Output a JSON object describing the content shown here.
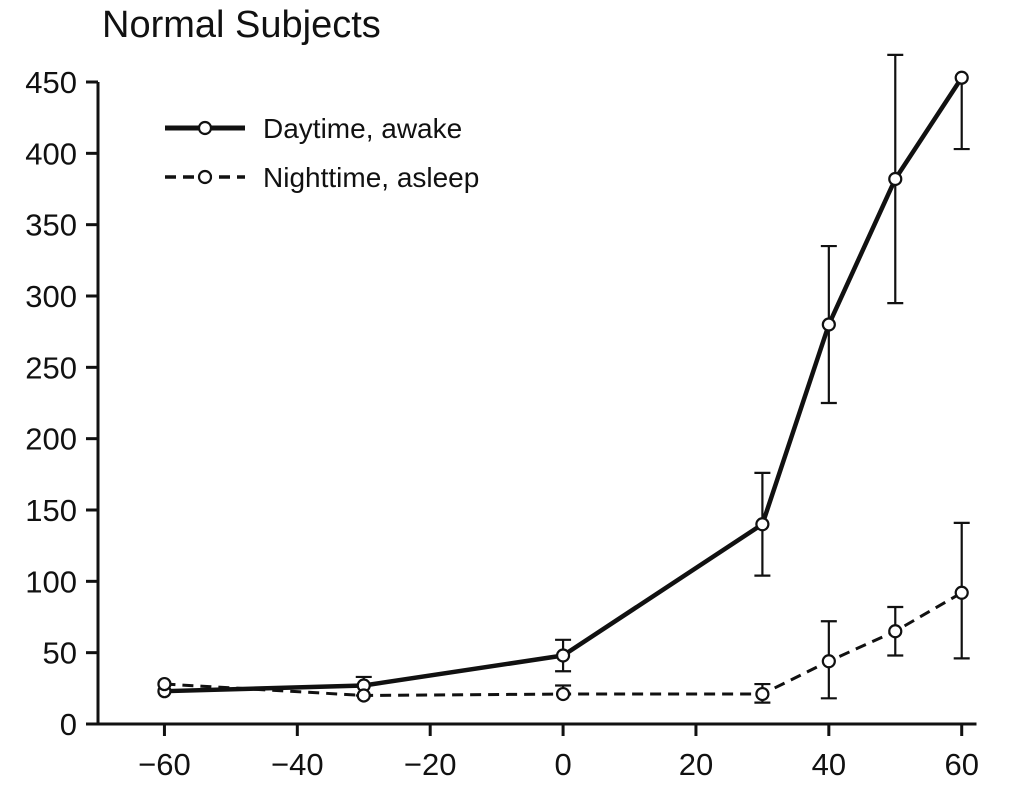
{
  "chart_data": {
    "type": "line",
    "title": "Normal Subjects",
    "xlabel": "",
    "ylabel": "",
    "xlim": [
      -70,
      62
    ],
    "ylim": [
      0,
      450
    ],
    "x_ticks": [
      -60,
      -40,
      -20,
      0,
      20,
      40,
      60
    ],
    "x_tick_labels": [
      "−60",
      "−40",
      "−20",
      "0",
      "20",
      "40",
      "60"
    ],
    "y_ticks": [
      0,
      50,
      100,
      150,
      200,
      250,
      300,
      350,
      400,
      450
    ],
    "y_tick_labels": [
      "0",
      "50",
      "100",
      "150",
      "200",
      "250",
      "300",
      "350",
      "400",
      "450"
    ],
    "grid": false,
    "legend_position": "top-left",
    "series": [
      {
        "name": "Daytime, awake",
        "line_style": "solid",
        "color": "#111111",
        "x": [
          -60,
          -30,
          0,
          30,
          40,
          50,
          60
        ],
        "y": [
          23,
          27,
          48,
          140,
          280,
          382,
          453
        ],
        "err_low": [
          null,
          20,
          37,
          104,
          225,
          295,
          403
        ],
        "err_high": [
          null,
          33,
          59,
          176,
          335,
          469,
          null
        ]
      },
      {
        "name": "Nighttime, asleep",
        "line_style": "dashed",
        "color": "#111111",
        "x": [
          -60,
          -30,
          0,
          30,
          40,
          50,
          60
        ],
        "y": [
          28,
          20,
          21,
          21,
          44,
          65,
          92
        ],
        "err_low": [
          null,
          null,
          null,
          15,
          18,
          48,
          46
        ],
        "err_high": [
          null,
          null,
          27,
          28,
          72,
          82,
          141
        ]
      }
    ]
  }
}
